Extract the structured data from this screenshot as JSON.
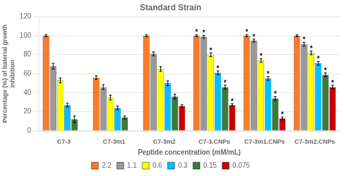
{
  "chart_data": {
    "type": "bar",
    "title": "Standard Strain",
    "xlabel": "Peptide concentration (mM/mL)",
    "ylabel": "Percentage (%) of baterial growth\ninhibition",
    "categories": [
      "C7-3",
      "C7-3m1",
      "C7-3m2",
      "C7-3.CNPs",
      "C7-3m1.CNPs",
      "C7-3m2.CNPs"
    ],
    "series": [
      {
        "name": "2.2",
        "color": "#F97B2A",
        "values": [
          100,
          56,
          100,
          100,
          100,
          100
        ],
        "errors": [
          1.0,
          2.0,
          1.0,
          1.0,
          1.0,
          1.0
        ]
      },
      {
        "name": "1.1",
        "color": "#999999",
        "values": [
          68,
          46,
          81,
          99,
          95,
          91
        ],
        "errors": [
          3.0,
          2.5,
          2.0,
          1.5,
          1.5,
          2.0
        ]
      },
      {
        "name": "0.6",
        "color": "#FFFF00",
        "values": [
          53,
          35,
          65,
          80,
          74,
          82
        ],
        "errors": [
          2.5,
          2.5,
          2.5,
          2.0,
          2.0,
          2.0
        ]
      },
      {
        "name": "0.3",
        "color": "#00BFFF",
        "values": [
          27,
          24,
          50,
          61,
          55,
          71
        ],
        "errors": [
          2.0,
          2.0,
          2.5,
          2.0,
          2.0,
          2.0
        ]
      },
      {
        "name": "0.15",
        "color": "#3A7A3A",
        "values": [
          12,
          14,
          36,
          46,
          34,
          59
        ],
        "errors": [
          3.5,
          1.5,
          2.5,
          2.0,
          2.0,
          2.0
        ]
      },
      {
        "name": "0.075",
        "color": "#CC0000",
        "values": [
          null,
          null,
          26,
          27,
          13,
          46
        ],
        "errors": [
          null,
          null,
          1.5,
          1.5,
          1.5,
          2.0
        ]
      }
    ],
    "annotations": [
      {
        "text": "*",
        "series": "2.2",
        "category": "C7-3.CNPs"
      },
      {
        "text": "*",
        "series": "1.1",
        "category": "C7-3.CNPs"
      },
      {
        "text": "*",
        "series": "0.6",
        "category": "C7-3.CNPs"
      },
      {
        "text": "*",
        "series": "0.3",
        "category": "C7-3.CNPs"
      },
      {
        "text": "*",
        "series": "0.15",
        "category": "C7-3.CNPs"
      },
      {
        "text": "*",
        "series": "0.075",
        "category": "C7-3.CNPs"
      },
      {
        "text": "*",
        "series": "2.2",
        "category": "C7-3m1.CNPs"
      },
      {
        "text": "*",
        "series": "1.1",
        "category": "C7-3m1.CNPs"
      },
      {
        "text": "*",
        "series": "0.6",
        "category": "C7-3m1.CNPs"
      },
      {
        "text": "*",
        "series": "0.3",
        "category": "C7-3m1.CNPs"
      },
      {
        "text": "*",
        "series": "0.15",
        "category": "C7-3m1.CNPs"
      },
      {
        "text": "*",
        "series": "0.075",
        "category": "C7-3m1.CNPs"
      },
      {
        "text": "*",
        "series": "1.1",
        "category": "C7-3m2.CNPs"
      },
      {
        "text": "*",
        "series": "0.6",
        "category": "C7-3m2.CNPs"
      },
      {
        "text": "*",
        "series": "0.3",
        "category": "C7-3m2.CNPs"
      },
      {
        "text": "*",
        "series": "0.15",
        "category": "C7-3m2.CNPs"
      },
      {
        "text": "*",
        "series": "0.075",
        "category": "C7-3m2.CNPs"
      }
    ],
    "ylim": [
      0,
      120
    ],
    "yticks": [
      0,
      20,
      40,
      60,
      80,
      100,
      120
    ],
    "grid": true,
    "legend": "bottom"
  }
}
